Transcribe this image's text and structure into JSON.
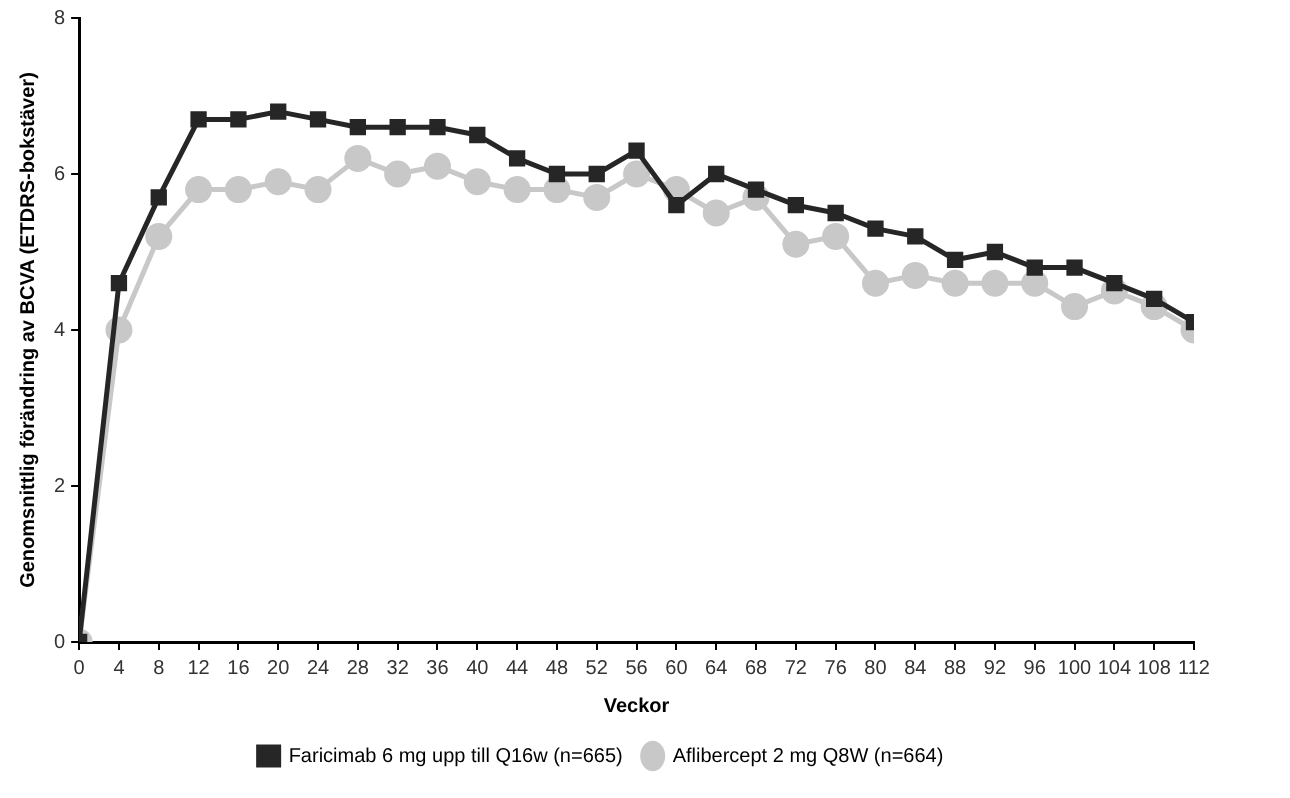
{
  "chart_data": {
    "type": "line",
    "xlabel": "Veckor",
    "ylabel": "Genomsnittlig förändring av BCVA (ETDRS-bokstäver)",
    "x": [
      0,
      4,
      8,
      12,
      16,
      20,
      24,
      28,
      32,
      36,
      40,
      44,
      48,
      52,
      56,
      60,
      64,
      68,
      72,
      76,
      80,
      84,
      88,
      92,
      96,
      100,
      104,
      108,
      112
    ],
    "xlim": [
      0,
      112
    ],
    "xticks": [
      0,
      4,
      8,
      12,
      16,
      20,
      24,
      28,
      32,
      36,
      40,
      44,
      48,
      52,
      56,
      60,
      64,
      68,
      72,
      76,
      80,
      84,
      88,
      92,
      96,
      100,
      104,
      108,
      112
    ],
    "ylim": [
      0,
      8
    ],
    "yticks": [
      0,
      2,
      4,
      6,
      8
    ],
    "grid": false,
    "legend": "bottom",
    "series": [
      {
        "name": "Faricimab 6 mg upp till Q16w (n=665)",
        "color": "#262626",
        "marker": "square",
        "values": [
          0,
          4.6,
          5.7,
          6.7,
          6.7,
          6.8,
          6.7,
          6.6,
          6.6,
          6.6,
          6.5,
          6.2,
          6.0,
          6.0,
          6.3,
          5.6,
          6.0,
          5.8,
          5.6,
          5.5,
          5.3,
          5.2,
          4.9,
          5.0,
          4.8,
          4.8,
          4.6,
          4.4,
          4.1
        ]
      },
      {
        "name": "Aflibercept 2 mg Q8W (n=664)",
        "color": "#c8c8c8",
        "marker": "circle",
        "values": [
          0,
          4.0,
          5.2,
          5.8,
          5.8,
          5.9,
          5.8,
          6.2,
          6.0,
          6.1,
          5.9,
          5.8,
          5.8,
          5.7,
          6.0,
          5.8,
          5.5,
          5.7,
          5.1,
          5.2,
          4.6,
          4.7,
          4.6,
          4.6,
          4.6,
          4.3,
          4.5,
          4.3,
          4.0
        ]
      }
    ]
  }
}
